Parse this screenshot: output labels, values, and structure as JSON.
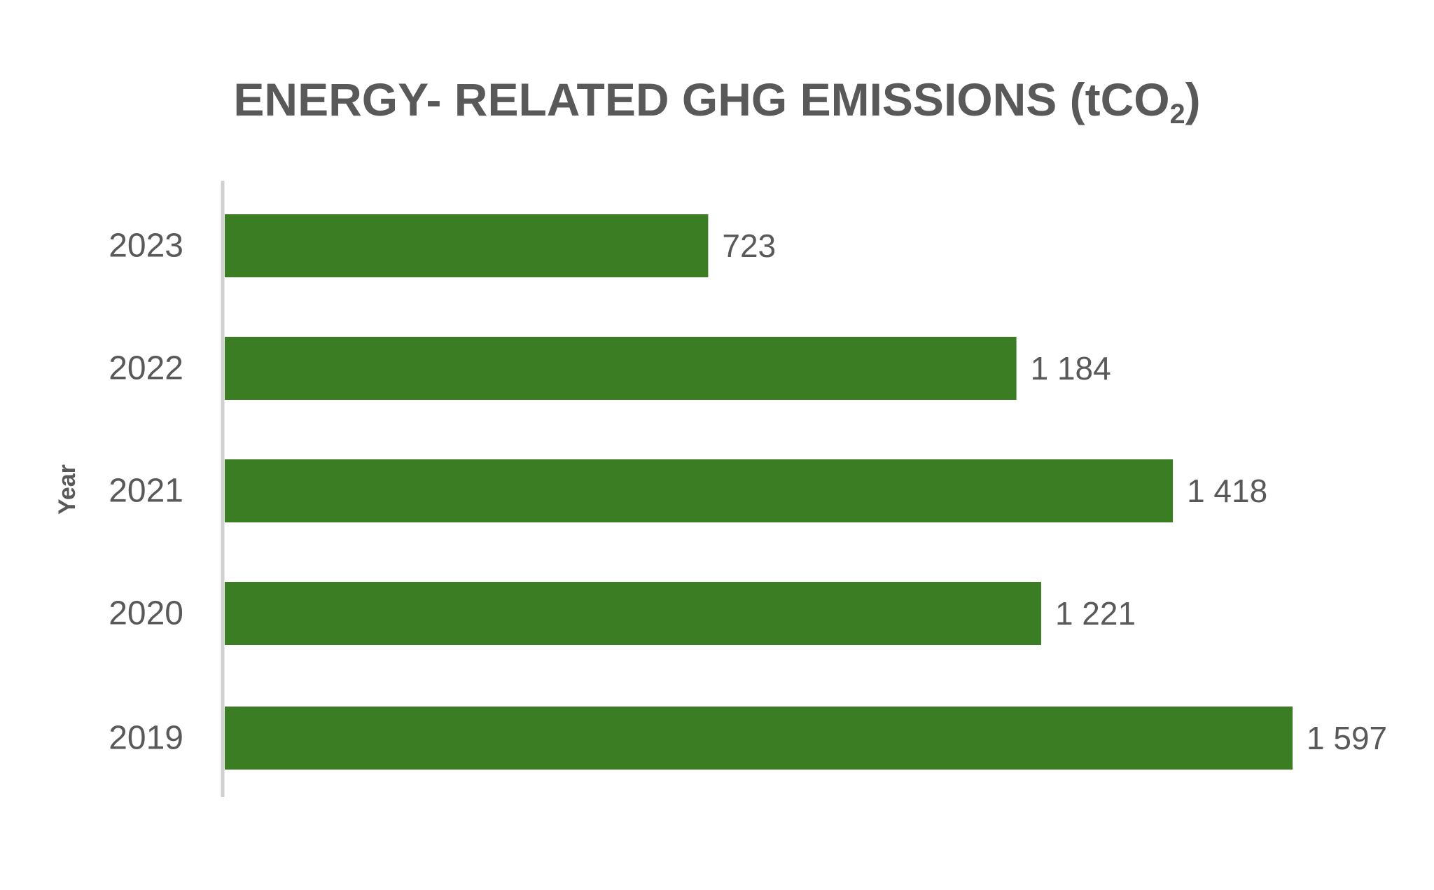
{
  "chart_data": {
    "type": "bar",
    "orientation": "horizontal",
    "title_main": "ENERGY- RELATED GHG EMISSIONS (tCO",
    "title_sub": "2",
    "title_end": ")",
    "ylabel": "Year",
    "xlabel": "",
    "categories": [
      "2023",
      "2022",
      "2021",
      "2020",
      "2019"
    ],
    "values": [
      723,
      1184,
      1418,
      1221,
      1597
    ],
    "data_labels": [
      "723",
      "1 184",
      "1 418",
      "1 221",
      "1 597"
    ],
    "xlim": [
      0,
      1597
    ],
    "grid": false,
    "legend": "none",
    "bar_color": "#3b7d23",
    "axis_color": "#d0d0d0",
    "text_color": "#595959"
  }
}
